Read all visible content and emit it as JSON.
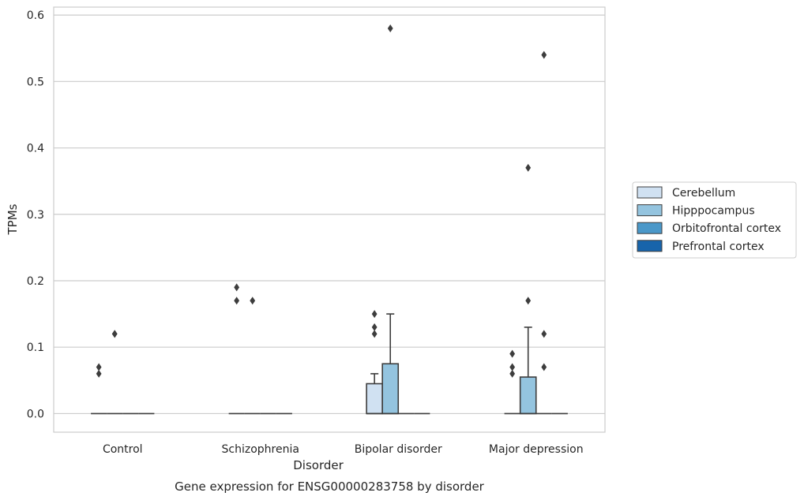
{
  "chart_data": {
    "type": "box",
    "caption": "Gene expression for ENSG00000283758 by disorder",
    "xlabel": "Disorder",
    "ylabel": "TPMs",
    "ylim": [
      -0.028,
      0.612
    ],
    "yticks": [
      0.0,
      0.1,
      0.2,
      0.3,
      0.4,
      0.5,
      0.6
    ],
    "ytick_labels": [
      "0.0",
      "0.1",
      "0.2",
      "0.3",
      "0.4",
      "0.5",
      "0.6"
    ],
    "grid": "horizontal",
    "legend_position": "right",
    "categories": [
      "Control",
      "Schizophrenia",
      "Bipolar disorder",
      "Major depression"
    ],
    "series": [
      {
        "name": "Cerebellum",
        "color": "#d0e1f2",
        "boxes": [
          {
            "q1": 0,
            "median": 0,
            "q3": 0,
            "whislo": 0,
            "whishi": 0,
            "fliers": [
              0.06,
              0.07
            ]
          },
          {
            "q1": 0,
            "median": 0,
            "q3": 0,
            "whislo": 0,
            "whishi": 0,
            "fliers": [
              0.17,
              0.19
            ]
          },
          {
            "q1": 0,
            "median": 0,
            "q3": 0.045,
            "whislo": 0,
            "whishi": 0.06,
            "fliers": [
              0.12,
              0.13,
              0.15
            ]
          },
          {
            "q1": 0,
            "median": 0,
            "q3": 0,
            "whislo": 0,
            "whishi": 0,
            "fliers": [
              0.06,
              0.07,
              0.09
            ]
          }
        ]
      },
      {
        "name": "Hipppocampus",
        "color": "#94c4df",
        "boxes": [
          {
            "q1": 0,
            "median": 0,
            "q3": 0,
            "whislo": 0,
            "whishi": 0,
            "fliers": [
              0.12,
              0.12
            ]
          },
          {
            "q1": 0,
            "median": 0,
            "q3": 0,
            "whislo": 0,
            "whishi": 0,
            "fliers": [
              0.17
            ]
          },
          {
            "q1": 0,
            "median": 0,
            "q3": 0.075,
            "whislo": 0,
            "whishi": 0.15,
            "fliers": [
              0.58
            ]
          },
          {
            "q1": 0,
            "median": 0,
            "q3": 0.055,
            "whislo": 0,
            "whishi": 0.13,
            "fliers": [
              0.17,
              0.37
            ]
          }
        ]
      },
      {
        "name": "Orbitofrontal cortex",
        "color": "#4a98c9",
        "boxes": [
          {
            "q1": 0,
            "median": 0,
            "q3": 0,
            "whislo": 0,
            "whishi": 0,
            "fliers": []
          },
          {
            "q1": 0,
            "median": 0,
            "q3": 0,
            "whislo": 0,
            "whishi": 0,
            "fliers": []
          },
          {
            "q1": 0,
            "median": 0,
            "q3": 0,
            "whislo": 0,
            "whishi": 0,
            "fliers": []
          },
          {
            "q1": 0,
            "median": 0,
            "q3": 0,
            "whislo": 0,
            "whishi": 0,
            "fliers": [
              0.07,
              0.12,
              0.54
            ]
          }
        ]
      },
      {
        "name": "Prefrontal cortex",
        "color": "#1764ab",
        "boxes": [
          {
            "q1": 0,
            "median": 0,
            "q3": 0,
            "whislo": 0,
            "whishi": 0,
            "fliers": []
          },
          {
            "q1": 0,
            "median": 0,
            "q3": 0,
            "whislo": 0,
            "whishi": 0,
            "fliers": []
          },
          {
            "q1": 0,
            "median": 0,
            "q3": 0,
            "whislo": 0,
            "whishi": 0,
            "fliers": []
          },
          {
            "q1": 0,
            "median": 0,
            "q3": 0,
            "whislo": 0,
            "whishi": 0,
            "fliers": []
          }
        ]
      }
    ]
  }
}
